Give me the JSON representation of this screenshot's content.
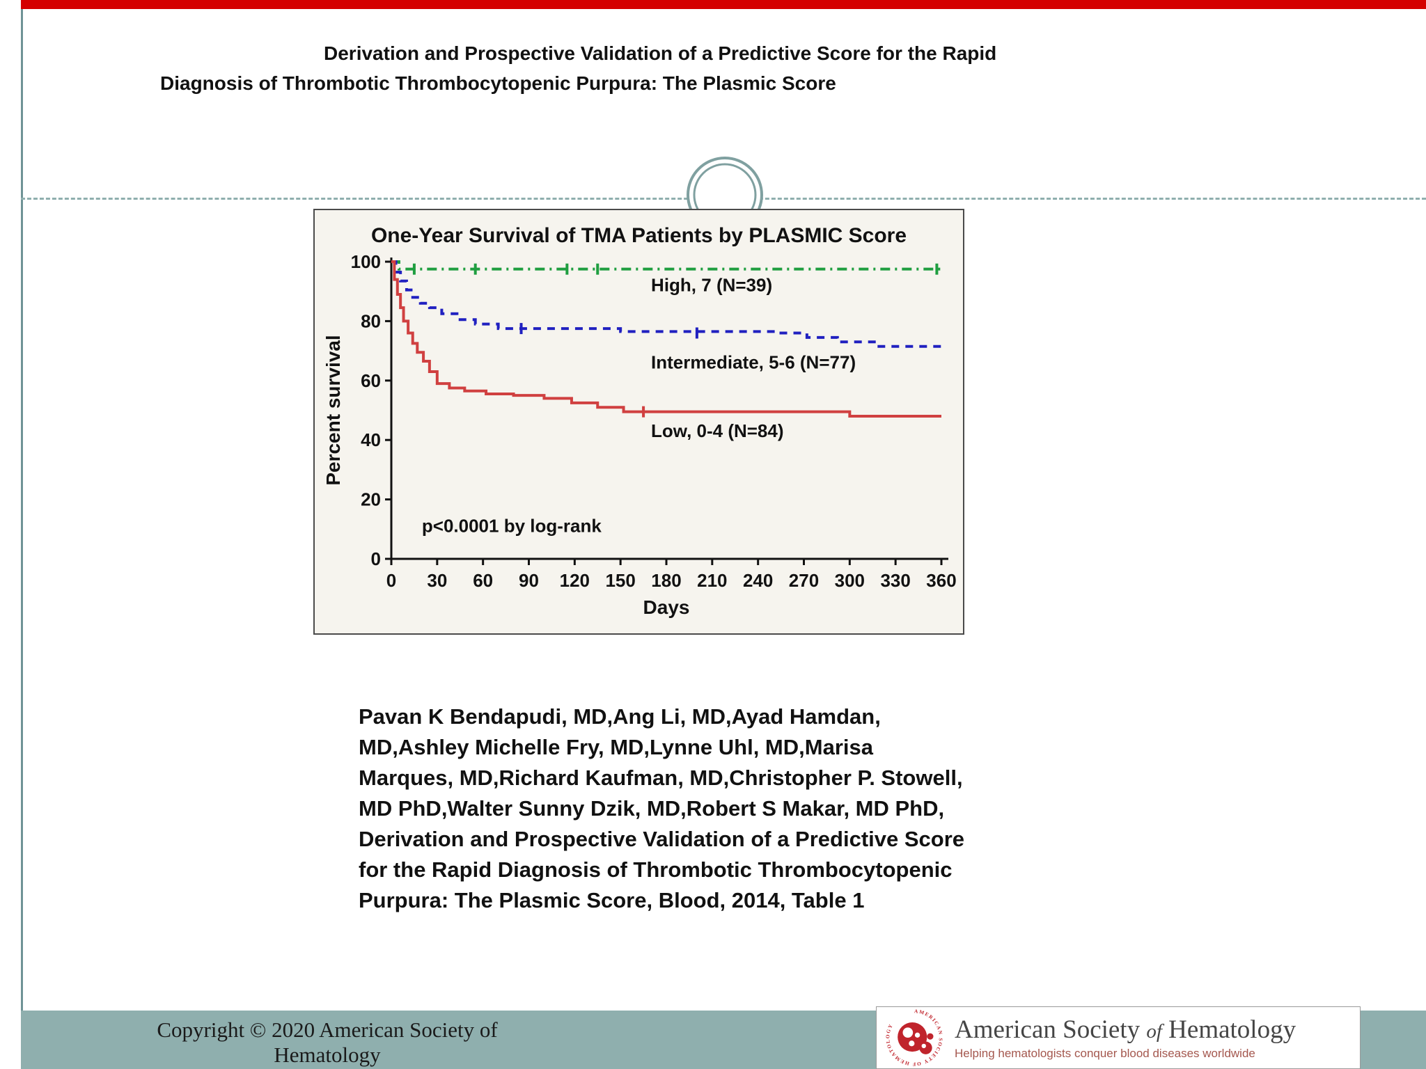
{
  "slide": {
    "title_lines": [
      "Derivation and Prospective Validation of a Predictive Score for the Rapid",
      "Diagnosis of Thrombotic Thrombocytopenic Purpura: The Plasmic Score"
    ],
    "citation": "Pavan K Bendapudi, MD,Ang Li, MD,Ayad Hamdan, MD,Ashley Michelle Fry, MD,Lynne Uhl, MD,Marisa Marques, MD,Richard Kaufman, MD,Christopher P. Stowell, MD PhD,Walter Sunny Dzik, MD,Robert S Makar, MD PhD, Derivation and Prospective Validation of a Predictive Score for the Rapid Diagnosis of Thrombotic Thrombocytopenic Purpura: The Plasmic Score, Blood, 2014, Table 1"
  },
  "footer": {
    "copyright": "Copyright © 2020 American Society of Hematology",
    "logo": {
      "ring_text": "AMERICAN SOCIETY OF HEMATOLOGY",
      "title_1": "American Society",
      "title_of": "of",
      "title_2": "Hematology",
      "tagline": "Helping hematologists conquer blood diseases worldwide"
    }
  },
  "colors": {
    "top_bar": "#d40000",
    "accent_teal": "#8fafae",
    "teal_line": "#6f9396",
    "ash_red": "#c0242c"
  },
  "chart_data": {
    "type": "line",
    "subtype": "kaplan-meier-step",
    "title": "One-Year Survival of TMA Patients by PLASMIC Score",
    "xlabel": "Days",
    "ylabel": "Percent survival",
    "xlim": [
      0,
      360
    ],
    "ylim": [
      0,
      100
    ],
    "x_ticks": [
      0,
      30,
      60,
      90,
      120,
      150,
      180,
      210,
      240,
      270,
      300,
      330,
      360
    ],
    "y_ticks": [
      0,
      20,
      40,
      60,
      80,
      100
    ],
    "annotation": "p<0.0001 by log-rank",
    "annotation_at": [
      20,
      9
    ],
    "grid": false,
    "legend_position": "inline-labels",
    "series": [
      {
        "name": "High, 7 (N=39)",
        "color": "#1f9e40",
        "dash": "14 7 3 7",
        "x": [
          0,
          5
        ],
        "y": [
          100,
          97.5
        ],
        "censors": [
          [
            15,
            97.5
          ],
          [
            55,
            97.5
          ],
          [
            115,
            97.5
          ],
          [
            135,
            97.5
          ],
          [
            357,
            97.5
          ]
        ],
        "label_at": [
          170,
          90
        ]
      },
      {
        "name": "Intermediate, 5-6 (N=77)",
        "color": "#2020c0",
        "dash": "11 9",
        "x": [
          0,
          3,
          6,
          10,
          14,
          19,
          25,
          33,
          43,
          55,
          70,
          150,
          250,
          272,
          292,
          318
        ],
        "y": [
          100,
          96.5,
          93.5,
          90.5,
          88,
          86,
          84.5,
          82.5,
          80.5,
          79,
          77.5,
          76.5,
          76,
          74.5,
          73,
          71.5
        ],
        "censors": [
          [
            85,
            77.5
          ],
          [
            200,
            76
          ]
        ],
        "label_at": [
          170,
          64
        ]
      },
      {
        "name": "Low, 0-4 (N=84)",
        "color": "#d04040",
        "dash": null,
        "x": [
          0,
          2,
          4,
          6,
          8,
          11,
          14,
          17,
          21,
          25,
          30,
          38,
          48,
          62,
          80,
          100,
          118,
          135,
          152,
          300
        ],
        "y": [
          100,
          94,
          89,
          84.5,
          80,
          76,
          72.5,
          69.5,
          66.5,
          63,
          59,
          57.5,
          56.5,
          55.5,
          55,
          54,
          52.5,
          51,
          49.5,
          48
        ],
        "censors": [
          [
            165,
            49.5
          ]
        ],
        "label_at": [
          170,
          41
        ]
      }
    ]
  }
}
